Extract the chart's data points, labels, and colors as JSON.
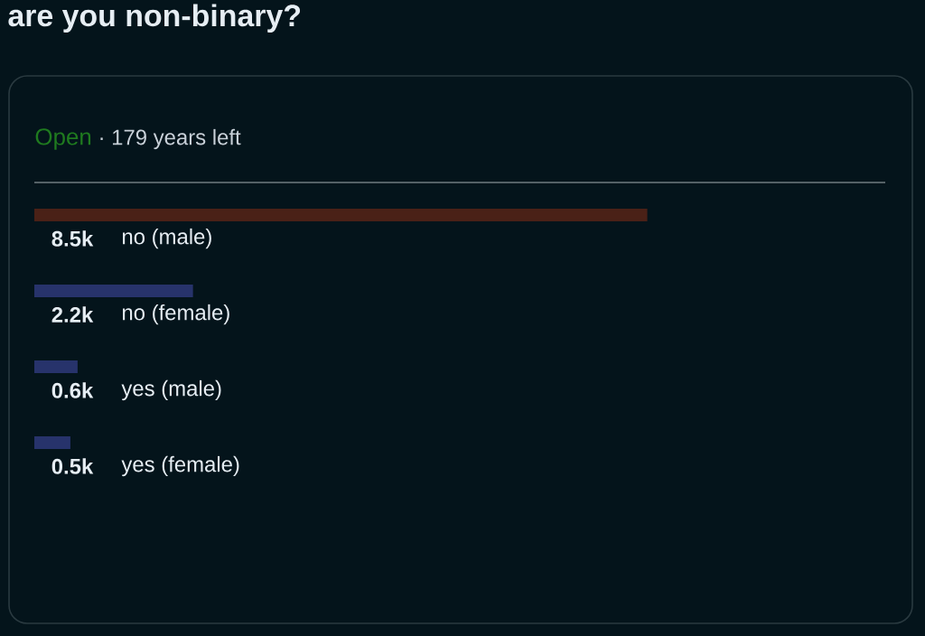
{
  "chart_data": {
    "type": "bar",
    "orientation": "horizontal",
    "title": "are you non-binary?",
    "subtitle": "Open",
    "annotations": [
      "· 179 years left"
    ],
    "categories": [
      "no (male)",
      "no (female)",
      "yes (male)",
      "yes (female)"
    ],
    "values": [
      8500,
      2200,
      600,
      500
    ],
    "value_labels": [
      "8.5k",
      "2.2k",
      "0.6k",
      "0.5k"
    ],
    "colors": [
      "#4a2117",
      "#27336b",
      "#27336b",
      "#27336b"
    ],
    "xlim": [
      0,
      11800
    ]
  }
}
